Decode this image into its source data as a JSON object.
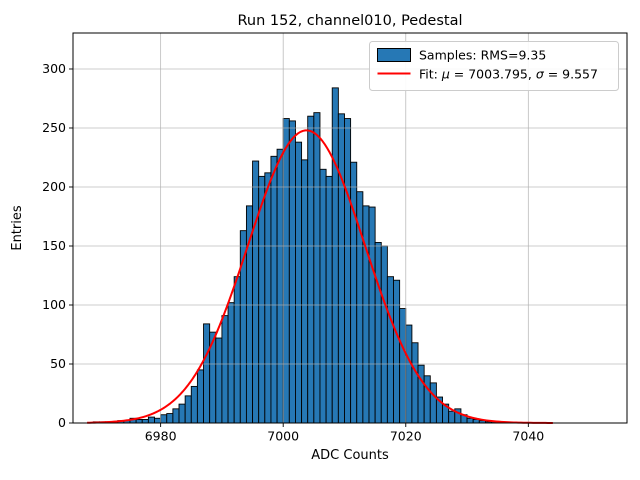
{
  "figure": {
    "title": "Run 152, channel010, Pedestal",
    "xlabel": "ADC Counts",
    "ylabel": "Entries"
  },
  "legend": {
    "samples_label": "Samples: RMS=9.35",
    "fit_parts": [
      "Fit: ",
      "μ",
      " = 7003.795, ",
      "σ",
      " = 9.557"
    ]
  },
  "chart_data": {
    "type": "bar",
    "subtype": "histogram-with-gaussian-fit",
    "title": "Run 152, channel010, Pedestal",
    "xlabel": "ADC Counts",
    "ylabel": "Entries",
    "bin_start": 6969,
    "bin_width": 1,
    "counts": [
      1,
      1,
      1,
      1,
      2,
      2,
      4,
      3,
      3,
      5,
      4,
      7,
      8,
      12,
      16,
      23,
      31,
      45,
      84,
      77,
      72,
      91,
      102,
      124,
      163,
      184,
      222,
      209,
      212,
      226,
      232,
      258,
      256,
      238,
      223,
      260,
      263,
      215,
      209,
      284,
      262,
      258,
      221,
      196,
      184,
      183,
      153,
      150,
      124,
      121,
      97,
      83,
      68,
      49,
      40,
      34,
      22,
      16,
      10,
      12,
      7,
      4,
      3,
      2,
      1,
      1,
      1
    ],
    "x_ticks": [
      6980,
      7000,
      7020,
      7040
    ],
    "y_ticks": [
      0,
      50,
      100,
      150,
      200,
      250,
      300
    ],
    "xlim": [
      6965.7,
      7056.1
    ],
    "ylim": [
      0,
      330.5
    ],
    "grid": true,
    "grid_color": "#b0b0b0",
    "legend_position": "upper right",
    "series": [
      {
        "name": "Samples: RMS=9.35",
        "type": "histogram",
        "rms": 9.35,
        "color": "#2678b5",
        "edge_color": "#000000"
      },
      {
        "name": "Fit: μ = 7003.795, σ = 9.557",
        "type": "gaussian_fit",
        "mu": 7003.795,
        "sigma": 9.557,
        "amplitude": 248,
        "x_range": [
          6968,
          7044
        ],
        "color": "#ff0000"
      }
    ]
  }
}
